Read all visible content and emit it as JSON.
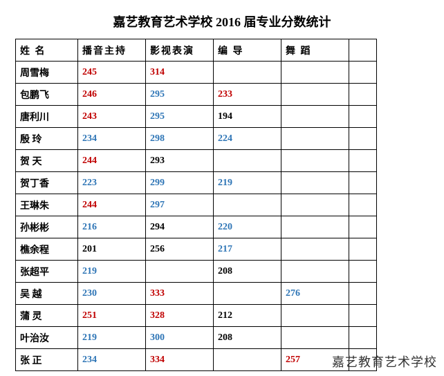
{
  "title": "嘉艺教育艺术学校 2016 届专业分数统计",
  "watermark": "嘉艺教育艺术学校",
  "colors": {
    "red": "#c00000",
    "blue": "#2e75b6",
    "black": "#000000"
  },
  "columns": [
    "姓 名",
    "播音主持",
    "影视表演",
    "编 导",
    "舞 蹈",
    ""
  ],
  "rows": [
    {
      "name": "周雪梅",
      "c1": {
        "v": "245",
        "c": "red"
      },
      "c2": {
        "v": "314",
        "c": "red"
      },
      "c3": {
        "v": "",
        "c": "black"
      },
      "c4": {
        "v": "",
        "c": "black"
      }
    },
    {
      "name": "包鹏飞",
      "c1": {
        "v": "246",
        "c": "red"
      },
      "c2": {
        "v": "295",
        "c": "blue"
      },
      "c3": {
        "v": "233",
        "c": "red"
      },
      "c4": {
        "v": "",
        "c": "black"
      }
    },
    {
      "name": "唐利川",
      "c1": {
        "v": "243",
        "c": "red"
      },
      "c2": {
        "v": "295",
        "c": "blue"
      },
      "c3": {
        "v": "194",
        "c": "black"
      },
      "c4": {
        "v": "",
        "c": "black"
      }
    },
    {
      "name": "殷  玲",
      "c1": {
        "v": "234",
        "c": "blue"
      },
      "c2": {
        "v": "298",
        "c": "blue"
      },
      "c3": {
        "v": "224",
        "c": "blue"
      },
      "c4": {
        "v": "",
        "c": "black"
      }
    },
    {
      "name": "贺  天",
      "c1": {
        "v": "244",
        "c": "red"
      },
      "c2": {
        "v": "293",
        "c": "black"
      },
      "c3": {
        "v": "",
        "c": "black"
      },
      "c4": {
        "v": "",
        "c": "black"
      }
    },
    {
      "name": "贺丁香",
      "c1": {
        "v": "223",
        "c": "blue"
      },
      "c2": {
        "v": "299",
        "c": "blue"
      },
      "c3": {
        "v": "219",
        "c": "blue"
      },
      "c4": {
        "v": "",
        "c": "black"
      }
    },
    {
      "name": "王琳朱",
      "c1": {
        "v": "244",
        "c": "red"
      },
      "c2": {
        "v": "297",
        "c": "blue"
      },
      "c3": {
        "v": "",
        "c": "black"
      },
      "c4": {
        "v": "",
        "c": "black"
      }
    },
    {
      "name": "孙彬彬",
      "c1": {
        "v": "216",
        "c": "blue"
      },
      "c2": {
        "v": "294",
        "c": "black"
      },
      "c3": {
        "v": "220",
        "c": "blue"
      },
      "c4": {
        "v": "",
        "c": "black"
      }
    },
    {
      "name": "樵余程",
      "c1": {
        "v": "201",
        "c": "black"
      },
      "c2": {
        "v": "256",
        "c": "black"
      },
      "c3": {
        "v": "217",
        "c": "blue"
      },
      "c4": {
        "v": "",
        "c": "black"
      }
    },
    {
      "name": "张超平",
      "c1": {
        "v": "219",
        "c": "blue"
      },
      "c2": {
        "v": "",
        "c": "black"
      },
      "c3": {
        "v": "208",
        "c": "black"
      },
      "c4": {
        "v": "",
        "c": "black"
      }
    },
    {
      "name": "吴  越",
      "c1": {
        "v": "230",
        "c": "blue"
      },
      "c2": {
        "v": "333",
        "c": "red"
      },
      "c3": {
        "v": "",
        "c": "black"
      },
      "c4": {
        "v": "276",
        "c": "blue"
      }
    },
    {
      "name": "蒲  灵",
      "c1": {
        "v": "251",
        "c": "red"
      },
      "c2": {
        "v": "328",
        "c": "red"
      },
      "c3": {
        "v": "212",
        "c": "black"
      },
      "c4": {
        "v": "",
        "c": "black"
      }
    },
    {
      "name": "叶治汝",
      "c1": {
        "v": "219",
        "c": "blue"
      },
      "c2": {
        "v": "300",
        "c": "blue"
      },
      "c3": {
        "v": "208",
        "c": "black"
      },
      "c4": {
        "v": "",
        "c": "black"
      }
    },
    {
      "name": "张  正",
      "c1": {
        "v": "234",
        "c": "blue"
      },
      "c2": {
        "v": "334",
        "c": "red"
      },
      "c3": {
        "v": "",
        "c": "black"
      },
      "c4": {
        "v": "257",
        "c": "red"
      }
    }
  ]
}
